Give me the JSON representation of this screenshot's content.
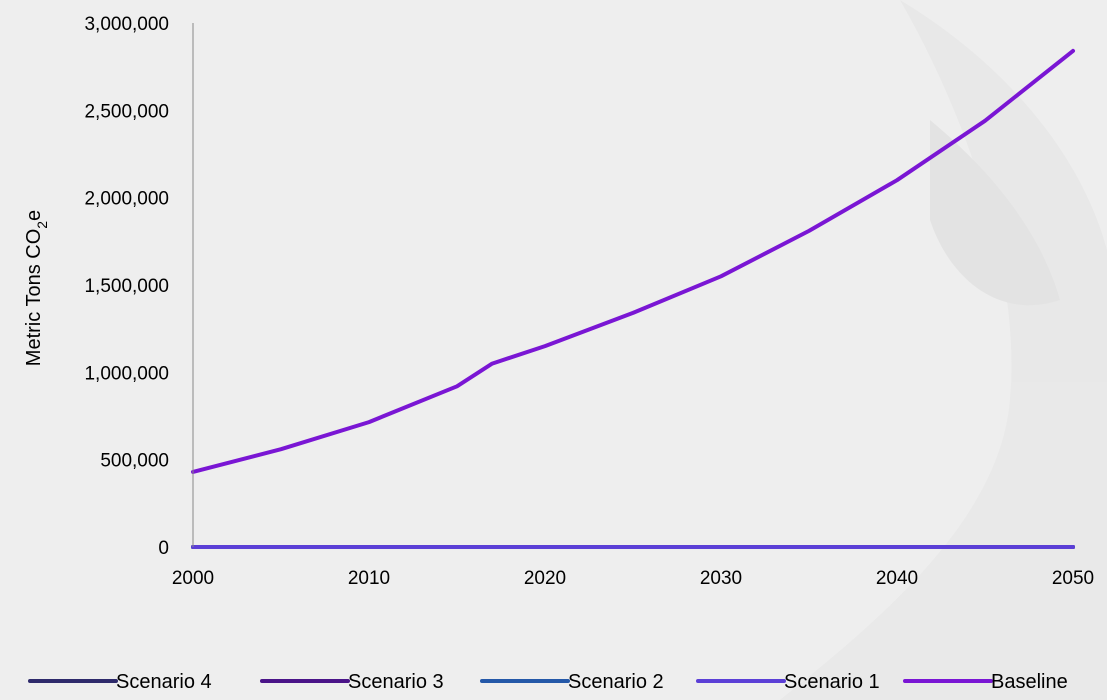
{
  "chart_data": {
    "type": "line",
    "title": "",
    "ylabel": {
      "main": "Metric Tons CO",
      "sub": "2",
      "tail": "e"
    },
    "xlabel": "",
    "xlim": [
      2000,
      2050
    ],
    "ylim": [
      0,
      3000000
    ],
    "x_ticks": [
      2000,
      2010,
      2020,
      2030,
      2040,
      2050
    ],
    "x_tick_labels": [
      "2000",
      "2010",
      "2020",
      "2030",
      "2040",
      "2050"
    ],
    "y_ticks": [
      0,
      500000,
      1000000,
      1500000,
      2000000,
      2500000,
      3000000
    ],
    "y_tick_labels": [
      "0",
      "500,000",
      "1,000,000",
      "1,500,000",
      "2,000,000",
      "2,500,000",
      "3,000,000"
    ],
    "grid": false,
    "legend_position": "bottom",
    "x": [
      2000,
      2005,
      2010,
      2015,
      2017,
      2020,
      2025,
      2030,
      2035,
      2040,
      2045,
      2050
    ],
    "series": [
      {
        "name": "Scenario 4",
        "color": "#2e2a6b",
        "values": [
          0,
          0,
          0,
          0,
          0,
          0,
          0,
          0,
          0,
          0,
          0,
          0
        ]
      },
      {
        "name": "Scenario 3",
        "color": "#4a1488",
        "values": [
          0,
          0,
          0,
          0,
          0,
          0,
          0,
          0,
          0,
          0,
          0,
          0
        ]
      },
      {
        "name": "Scenario 2",
        "color": "#2458a8",
        "values": [
          0,
          0,
          0,
          0,
          0,
          0,
          0,
          0,
          0,
          0,
          0,
          0
        ]
      },
      {
        "name": "Scenario 1",
        "color": "#5b3fd6",
        "values": [
          0,
          0,
          0,
          0,
          0,
          0,
          0,
          0,
          0,
          0,
          0,
          0
        ]
      },
      {
        "name": "Baseline",
        "color": "#7a16d4",
        "values": [
          430000,
          560000,
          715000,
          920000,
          1050000,
          1150000,
          1340000,
          1550000,
          1810000,
          2100000,
          2440000,
          2840000
        ]
      }
    ]
  }
}
